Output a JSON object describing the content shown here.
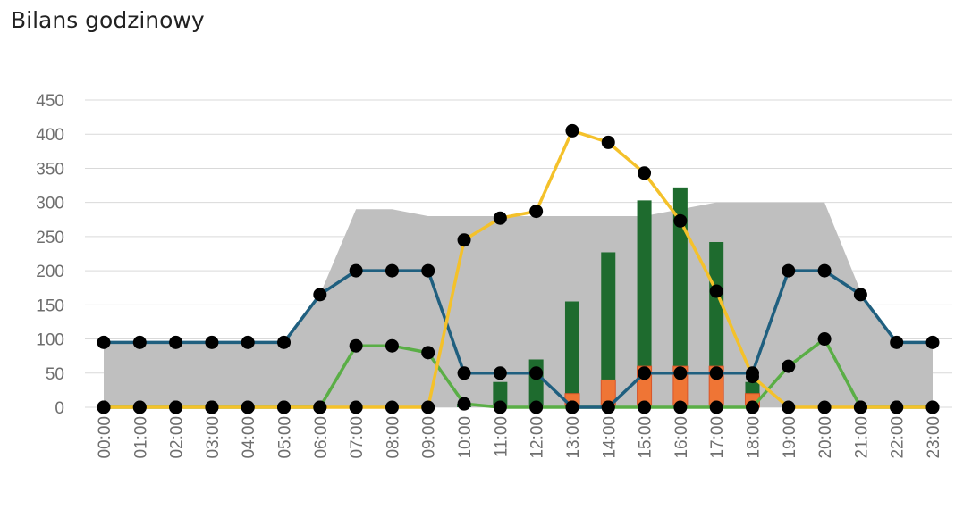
{
  "chart_data": {
    "type": "bar",
    "title": "Bilans godzinowy",
    "xlabel": "",
    "ylabel": "",
    "ylim": [
      0,
      450
    ],
    "yticks": [
      "0",
      "50",
      "100",
      "150",
      "200",
      "250",
      "300",
      "350",
      "400",
      "450"
    ],
    "categories": [
      "00:00",
      "01:00",
      "02:00",
      "03:00",
      "04:00",
      "05:00",
      "06:00",
      "07:00",
      "08:00",
      "09:00",
      "10:00",
      "11:00",
      "12:00",
      "13:00",
      "14:00",
      "15:00",
      "16:00",
      "17:00",
      "18:00",
      "19:00",
      "20:00",
      "21:00",
      "22:00",
      "23:00"
    ],
    "grid": true,
    "series": [
      {
        "name": "area",
        "kind": "area",
        "color": "#bfbfbf",
        "values": [
          95,
          95,
          95,
          95,
          95,
          95,
          165,
          290,
          290,
          280,
          280,
          280,
          280,
          280,
          280,
          280,
          290,
          300,
          300,
          300,
          300,
          170,
          95,
          95
        ]
      },
      {
        "name": "green-bars",
        "kind": "bar",
        "color": "#1e6b2e",
        "values": [
          0,
          0,
          0,
          0,
          0,
          0,
          0,
          0,
          0,
          0,
          5,
          37,
          70,
          155,
          227,
          303,
          322,
          242,
          37,
          0,
          0,
          0,
          0,
          0
        ]
      },
      {
        "name": "orange-bars",
        "kind": "bar",
        "color": "#ef7535",
        "values": [
          0,
          0,
          0,
          0,
          0,
          0,
          0,
          0,
          0,
          0,
          0,
          0,
          0,
          20,
          40,
          60,
          60,
          60,
          20,
          0,
          0,
          0,
          0,
          0
        ]
      },
      {
        "name": "blue-line",
        "kind": "line",
        "color": "#1f5f7f",
        "values": [
          95,
          95,
          95,
          95,
          95,
          95,
          165,
          200,
          200,
          200,
          50,
          50,
          50,
          0,
          0,
          50,
          50,
          50,
          50,
          200,
          200,
          165,
          95,
          95
        ]
      },
      {
        "name": "green-line",
        "kind": "line",
        "color": "#5aae46",
        "values": [
          0,
          0,
          0,
          0,
          0,
          0,
          0,
          90,
          90,
          80,
          5,
          0,
          0,
          0,
          0,
          0,
          0,
          0,
          0,
          60,
          100,
          0,
          0,
          0
        ]
      },
      {
        "name": "yellow-line",
        "kind": "line",
        "color": "#f4c12a",
        "values": [
          0,
          0,
          0,
          0,
          0,
          0,
          0,
          0,
          0,
          0,
          245,
          277,
          287,
          405,
          388,
          343,
          273,
          170,
          45,
          0,
          0,
          0,
          0,
          0
        ]
      }
    ]
  }
}
